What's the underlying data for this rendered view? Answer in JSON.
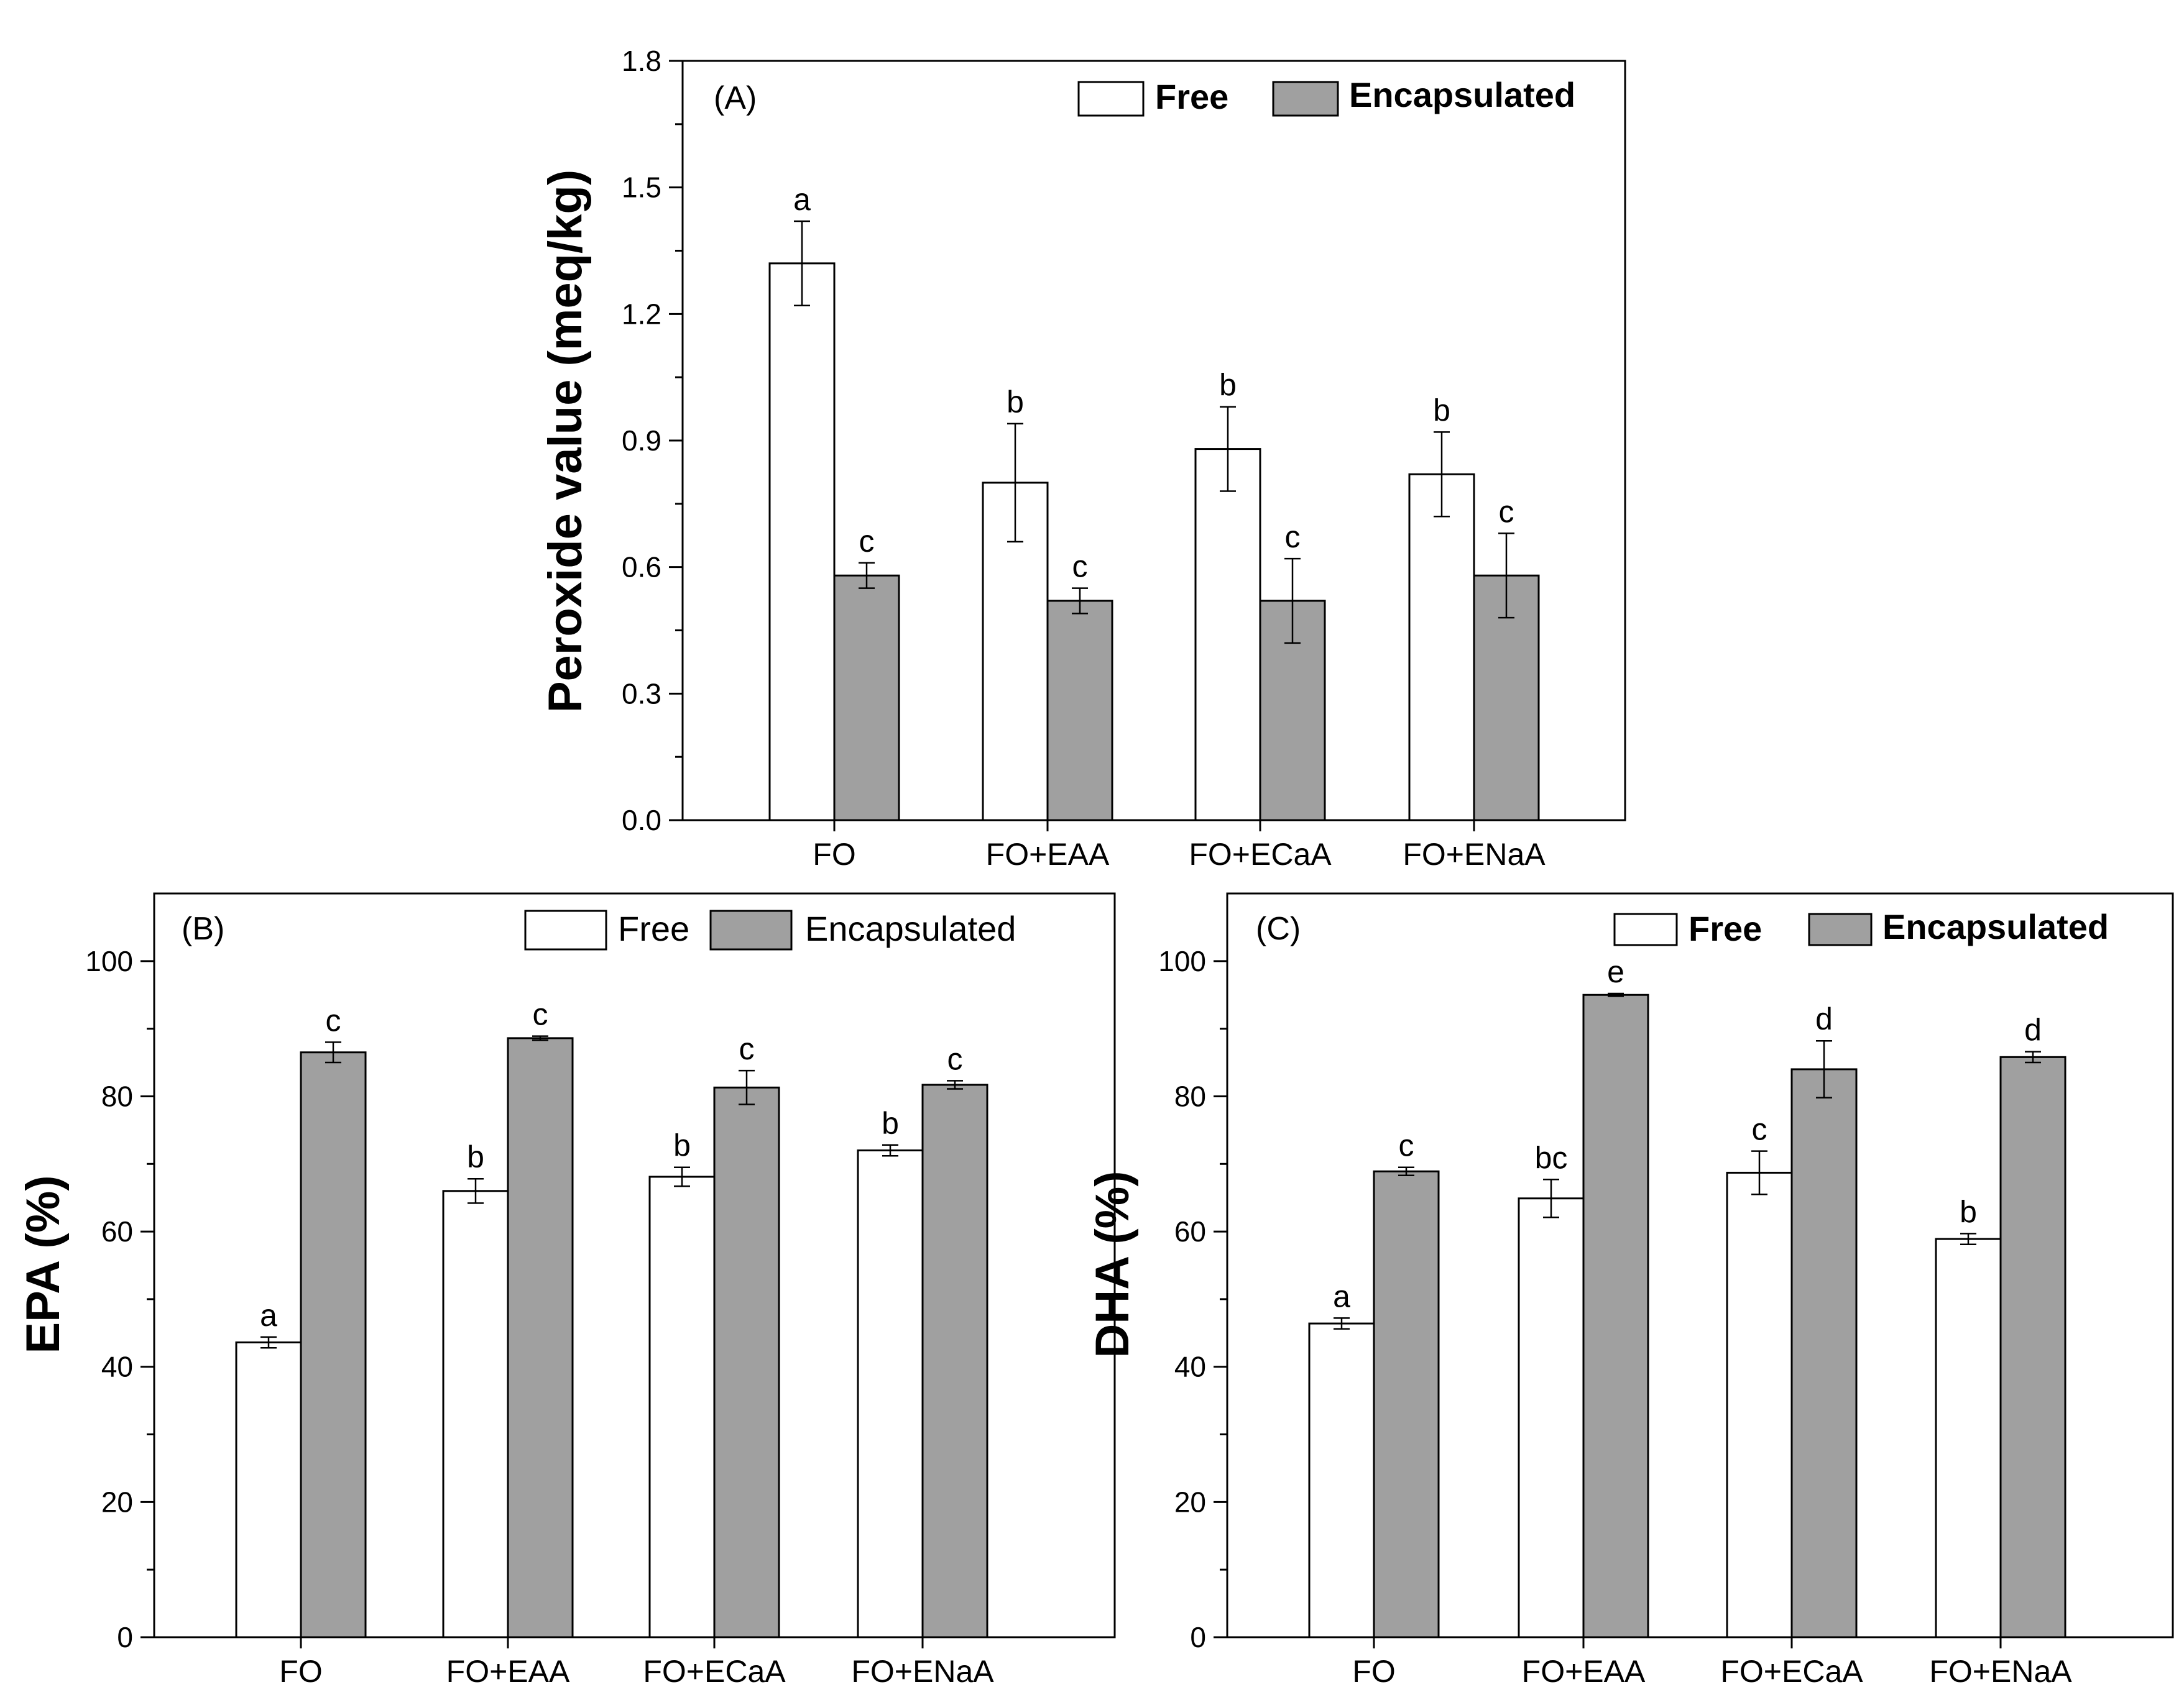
{
  "chart_data": [
    {
      "type": "bar",
      "panel": "(A)",
      "ylabel": "Peroxide value (meq/kg)",
      "xlabel": "",
      "ylim": [
        0,
        1.8
      ],
      "yticks": [
        "0.0",
        "0.3",
        "0.6",
        "0.9",
        "1.2",
        "1.5",
        "1.8"
      ],
      "categories": [
        "FO",
        "FO+EAA",
        "FO+ECaA",
        "FO+ENaA"
      ],
      "legend_bold": true,
      "legend_position": "top-right",
      "series": [
        {
          "name": "Free",
          "color": "#ffffff",
          "values": [
            1.32,
            0.8,
            0.88,
            0.82
          ],
          "errors": [
            0.1,
            0.14,
            0.1,
            0.1
          ],
          "labels": [
            "a",
            "b",
            "b",
            "b"
          ]
        },
        {
          "name": "Encapsulated",
          "color": "#a0a0a0",
          "values": [
            0.58,
            0.52,
            0.52,
            0.58
          ],
          "errors": [
            0.03,
            0.03,
            0.1,
            0.1
          ],
          "labels": [
            "c",
            "c",
            "c",
            "c"
          ]
        }
      ]
    },
    {
      "type": "bar",
      "panel": "(B)",
      "ylabel": "EPA (%)",
      "xlabel": "",
      "ylim": [
        0,
        110
      ],
      "yticks": [
        "0",
        "20",
        "40",
        "60",
        "80",
        "100"
      ],
      "categories": [
        "FO",
        "FO+EAA",
        "FO+ECaA",
        "FO+ENaA"
      ],
      "legend_bold": false,
      "legend_position": "top-right",
      "series": [
        {
          "name": "Free",
          "color": "#ffffff",
          "values": [
            43.6,
            66.0,
            68.1,
            72.0
          ],
          "errors": [
            0.8,
            1.8,
            1.4,
            0.8
          ],
          "labels": [
            "a",
            "b",
            "b",
            "b"
          ]
        },
        {
          "name": "Encapsulated",
          "color": "#a0a0a0",
          "values": [
            86.5,
            88.6,
            81.3,
            81.7
          ],
          "errors": [
            1.5,
            0.3,
            2.5,
            0.6
          ],
          "labels": [
            "c",
            "c",
            "c",
            "c"
          ]
        }
      ]
    },
    {
      "type": "bar",
      "panel": "(C)",
      "ylabel": "DHA (%)",
      "xlabel": "",
      "ylim": [
        0,
        110
      ],
      "yticks": [
        "0",
        "20",
        "40",
        "60",
        "80",
        "100"
      ],
      "categories": [
        "FO",
        "FO+EAA",
        "FO+ECaA",
        "FO+ENaA"
      ],
      "legend_bold": true,
      "legend_position": "top-right",
      "series": [
        {
          "name": "Free",
          "color": "#ffffff",
          "values": [
            46.4,
            64.9,
            68.7,
            58.9
          ],
          "errors": [
            0.8,
            2.8,
            3.2,
            0.8
          ],
          "labels": [
            "a",
            "bc",
            "c",
            "b"
          ]
        },
        {
          "name": "Encapsulated",
          "color": "#a0a0a0",
          "values": [
            68.9,
            95.0,
            84.0,
            85.8
          ],
          "errors": [
            0.6,
            0.2,
            4.2,
            0.8
          ],
          "labels": [
            "c",
            "e",
            "d",
            "d"
          ]
        }
      ]
    }
  ]
}
